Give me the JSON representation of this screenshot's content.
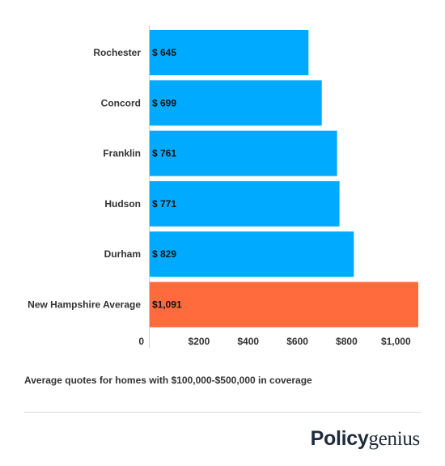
{
  "chart_data": {
    "type": "bar",
    "orientation": "horizontal",
    "categories": [
      "Rochester",
      "Concord",
      "Franklin",
      "Hudson",
      "Durham",
      "New Hampshire Average"
    ],
    "values": [
      645,
      699,
      761,
      771,
      829,
      1091
    ],
    "data_labels": [
      "$ 645",
      "$ 699",
      "$ 761",
      "$ 771",
      "$ 829",
      "$1,091"
    ],
    "bar_colors": [
      "#00aaff",
      "#00aaff",
      "#00aaff",
      "#00aaff",
      "#00aaff",
      "#ff6b3d"
    ],
    "xticks": [
      0,
      200,
      400,
      600,
      800,
      1000
    ],
    "xtick_labels": [
      "0",
      "$200",
      "$400",
      "$600",
      "$800",
      "$1,000"
    ],
    "xlim": [
      0,
      1091
    ],
    "title": "",
    "xlabel": "",
    "ylabel": "",
    "grid": false
  },
  "caption": "Average quotes for homes with $100,000-$500,000 in coverage",
  "brand": {
    "bold": "Policy",
    "light": "genius"
  }
}
